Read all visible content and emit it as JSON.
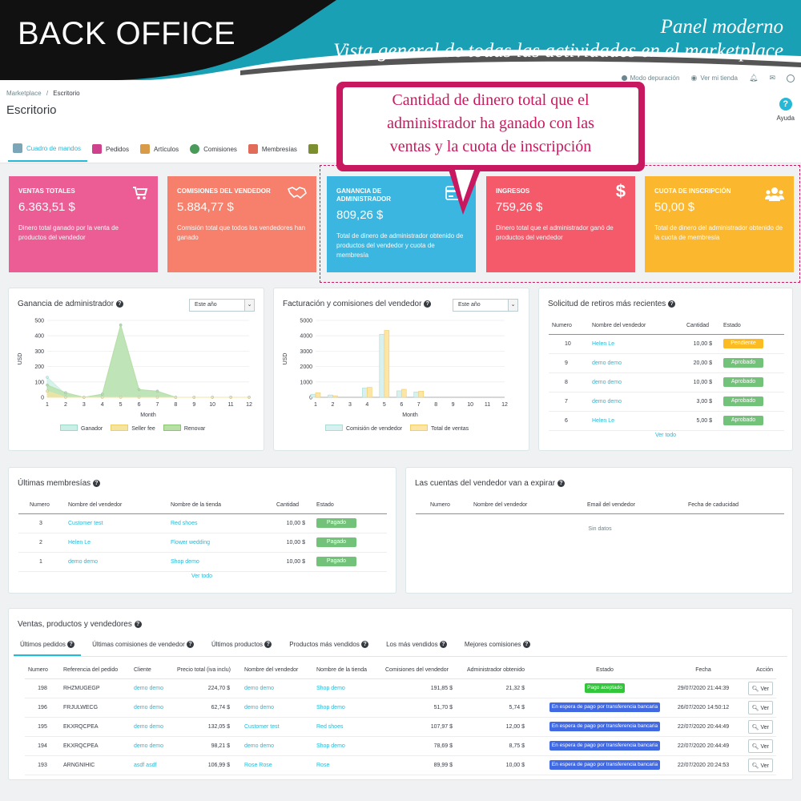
{
  "banner": {
    "title": "BACK OFFICE",
    "subtitle1": "Panel moderno",
    "subtitle2": "Vista general de todas las actividades en el marketplace"
  },
  "topbar": {
    "debug": "Modo depuración",
    "store": "Ver mi tienda"
  },
  "breadcrumb": {
    "root": "Marketplace",
    "sep": "/",
    "current": "Escritorio"
  },
  "page_title": "Escritorio",
  "help_label": "Ayuda",
  "tabs": [
    {
      "label": "Cuadro de mandos",
      "color": "#7aa6b8"
    },
    {
      "label": "Pedidos",
      "color": "#d0418d"
    },
    {
      "label": "Artículos",
      "color": "#d89b4a"
    },
    {
      "label": "Comisiones",
      "color": "#4a9a5a"
    },
    {
      "label": "Membresías",
      "color": "#e26c5a"
    },
    {
      "label": "",
      "color": "#7b8f2e"
    }
  ],
  "callout": {
    "line1": "Cantidad de dinero total que el",
    "line2": "administrador ha ganado con las",
    "line3": "ventas y la cuota de inscripción"
  },
  "cards": [
    {
      "title": "VENTAS TOTALES",
      "value": "6.363,51 $",
      "desc": "Dinero total ganado por la venta de productos del vendedor",
      "color": "#ec5d96",
      "icon": "cart-icon"
    },
    {
      "title": "COMISIONES DEL VENDEDOR",
      "value": "5.884,77 $",
      "desc": "Comisión total que todos los vendedores han ganado",
      "color": "#f6806c",
      "icon": "handshake-icon"
    },
    {
      "title": "GANANCIA DE ADMINISTRADOR",
      "value": "809,26 $",
      "desc": "Total de dinero de administrador obtenido de productos del vendedor y cuota de membresía",
      "color": "#3bb6e0",
      "icon": "credit-card-icon"
    },
    {
      "title": "INGRESOS",
      "value": "759,26 $",
      "desc": "Dinero total que el administrador ganó de productos del vendedor",
      "color": "#f55a6b",
      "icon": "dollar-icon"
    },
    {
      "title": "CUOTA DE INSCRIPCIÓN",
      "value": "50,00 $",
      "desc": "Total de dinero del administrador obtenido de la cuota de membresía",
      "color": "#fbb82e",
      "icon": "users-icon"
    }
  ],
  "panels": {
    "admin_gain_title": "Ganancia de administrador",
    "billing_title": "Facturación y comisiones del vendedor",
    "withdrawals_title": "Solicitud de retiros más recientes",
    "memberships_title": "Últimas membresías",
    "expiring_title": "Las cuentas del vendedor van a expirar",
    "sales_title": "Ventas, productos y vendedores"
  },
  "select_value": "Este año",
  "chart_data": [
    {
      "type": "area",
      "title": "Ganancia de administrador",
      "xlabel": "Month",
      "ylabel": "USD",
      "x": [
        1,
        2,
        3,
        4,
        5,
        6,
        7,
        8,
        9,
        10,
        11,
        12
      ],
      "ylim": [
        0,
        500
      ],
      "yticks": [
        0,
        100,
        200,
        300,
        400,
        500
      ],
      "series": [
        {
          "name": "Ganador",
          "color": "#c9efe6",
          "values": [
            130,
            20,
            0,
            20,
            470,
            50,
            40,
            0,
            0,
            0,
            0,
            0
          ]
        },
        {
          "name": "Seller fee",
          "color": "#f5e3a0",
          "values": [
            40,
            0,
            0,
            0,
            0,
            0,
            0,
            0,
            0,
            0,
            0,
            0
          ]
        },
        {
          "name": "Renovar",
          "color": "#b7dfa6",
          "values": [
            80,
            30,
            0,
            20,
            470,
            50,
            40,
            0,
            0,
            0,
            0,
            0
          ]
        }
      ]
    },
    {
      "type": "bar",
      "title": "Facturación y comisiones del vendedor",
      "xlabel": "Month",
      "ylabel": "USD",
      "x": [
        1,
        2,
        3,
        4,
        5,
        6,
        7,
        8,
        9,
        10,
        11,
        12
      ],
      "ylim": [
        0,
        5000
      ],
      "yticks": [
        0,
        1000,
        2000,
        3000,
        4000,
        5000
      ],
      "series": [
        {
          "name": "Comisión de vendedor",
          "color": "#d9f1ee",
          "values": [
            200,
            150,
            0,
            600,
            4100,
            420,
            350,
            0,
            0,
            0,
            0,
            0
          ]
        },
        {
          "name": "Total de ventas",
          "color": "#fde5a5",
          "values": [
            300,
            100,
            0,
            650,
            4350,
            520,
            400,
            0,
            0,
            0,
            0,
            0
          ]
        }
      ]
    }
  ],
  "withdrawals": {
    "headers": [
      "Numero",
      "Nombre del vendedor",
      "Cantidad",
      "Estado"
    ],
    "rows": [
      {
        "num": "10",
        "name": "Helen Le",
        "amount": "10,00 $",
        "status": "Pendiente",
        "color": "#fbbb22"
      },
      {
        "num": "9",
        "name": "demo demo",
        "amount": "20,00 $",
        "status": "Aprobado",
        "color": "#72c279"
      },
      {
        "num": "8",
        "name": "demo demo",
        "amount": "10,00 $",
        "status": "Aprobado",
        "color": "#72c279"
      },
      {
        "num": "7",
        "name": "demo demo",
        "amount": "3,00 $",
        "status": "Aprobado",
        "color": "#72c279"
      },
      {
        "num": "6",
        "name": "Helen Le",
        "amount": "5,00 $",
        "status": "Aprobado",
        "color": "#72c279"
      }
    ],
    "view_all": "Ver todo"
  },
  "memberships": {
    "headers": [
      "Numero",
      "Nombre del vendedor",
      "Nombre de la tienda",
      "Cantidad",
      "Estado"
    ],
    "rows": [
      {
        "num": "3",
        "name": "Customer test",
        "shop": "Red shoes",
        "amount": "10,00 $",
        "status": "Pagado"
      },
      {
        "num": "2",
        "name": "Helen Le",
        "shop": "Flower wedding",
        "amount": "10,00 $",
        "status": "Pagado"
      },
      {
        "num": "1",
        "name": "demo demo",
        "shop": "Shop demo",
        "amount": "10,00 $",
        "status": "Pagado"
      }
    ],
    "view_all": "Ver todo"
  },
  "expiring": {
    "headers": [
      "Numero",
      "Nombre del vendedor",
      "Email del vendedor",
      "Fecha de caducidad"
    ],
    "empty": "Sin datos"
  },
  "sales_tabs": [
    "Últimos pedidos",
    "Últimas comisiones de vendedor",
    "Últimos productos",
    "Productos más vendidos",
    "Los más vendidos",
    "Mejores comisiones"
  ],
  "orders": {
    "headers": [
      "Numero",
      "Referencia del pedido",
      "Cliente",
      "Precio total (iva inclu)",
      "Nombre del vendedor",
      "Nombre de la tienda",
      "Comisiones del vendedor",
      "Administrador obtenido",
      "Estado",
      "Fecha",
      "Acción"
    ],
    "view_label": "Ver",
    "rows": [
      {
        "num": "198",
        "ref": "RHZMUGEGP",
        "client": "demo demo",
        "total": "224,70 $",
        "seller": "demo demo",
        "shop": "Shop demo",
        "comm": "191,85 $",
        "admin": "21,32 $",
        "status": "Pago aceptado",
        "color": "#32c63a",
        "date": "29/07/2020 21:44:39"
      },
      {
        "num": "196",
        "ref": "FRJULWECG",
        "client": "demo demo",
        "total": "62,74 $",
        "seller": "demo demo",
        "shop": "Shop demo",
        "comm": "51,70 $",
        "admin": "5,74 $",
        "status": "En espera de pago por transferencia bancaria",
        "color": "#4169e1",
        "date": "26/07/2020 14:50:12"
      },
      {
        "num": "195",
        "ref": "EKXRQCPEA",
        "client": "demo demo",
        "total": "132,05 $",
        "seller": "Customer test",
        "shop": "Red shoes",
        "comm": "107,97 $",
        "admin": "12,00 $",
        "status": "En espera de pago por transferencia bancaria",
        "color": "#4169e1",
        "date": "22/07/2020 20:44:49"
      },
      {
        "num": "194",
        "ref": "EKXRQCPEA",
        "client": "demo demo",
        "total": "98,21 $",
        "seller": "demo demo",
        "shop": "Shop demo",
        "comm": "78,69 $",
        "admin": "8,75 $",
        "status": "En espera de pago por transferencia bancaria",
        "color": "#4169e1",
        "date": "22/07/2020 20:44:49"
      },
      {
        "num": "193",
        "ref": "ARNGNIHIC",
        "client": "asdf asdf",
        "total": "106,99 $",
        "seller": "Rose Rose",
        "shop": "Rose",
        "comm": "89,99 $",
        "admin": "10,00 $",
        "status": "En espera de pago por transferencia bancaria",
        "color": "#4169e1",
        "date": "22/07/2020 20:24:53"
      }
    ]
  }
}
